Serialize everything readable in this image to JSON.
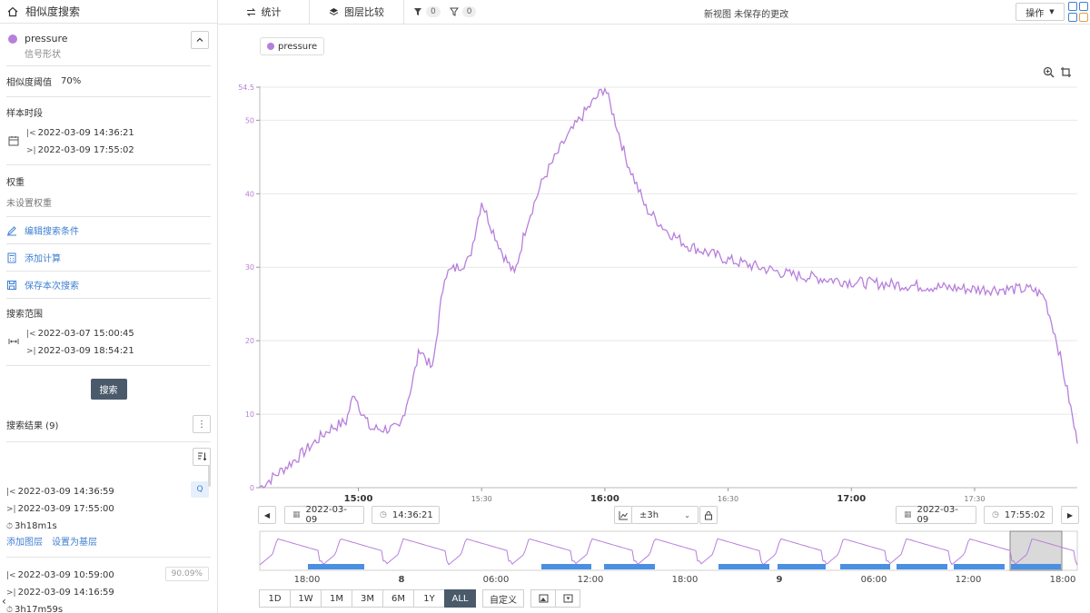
{
  "sidebar": {
    "title": "相似度搜索",
    "series_name": "pressure",
    "series_sub": "信号形状",
    "threshold_label": "相似度阈值",
    "threshold_value": "70%",
    "sample_label": "样本时段",
    "sample_start": "2022-03-09 14:36:21",
    "sample_end": "2022-03-09 17:55:02",
    "weight_label": "权重",
    "weight_value": "未设置权重",
    "actions": [
      "编辑搜索条件",
      "添加计算",
      "保存本次搜索"
    ],
    "scope_label": "搜索范围",
    "scope_start": "2022-03-07 15:00:45",
    "scope_end": "2022-03-09 18:54:21",
    "search_button": "搜索",
    "results_label": "搜索结果 (9)",
    "results": [
      {
        "start": "2022-03-09 14:36:59",
        "end": "2022-03-09 17:55:00",
        "duration": "3h18m1s",
        "badge": "Q",
        "links": [
          "添加图层",
          "设置为基层"
        ]
      },
      {
        "start": "2022-03-09 10:59:00",
        "end": "2022-03-09 14:16:59",
        "duration": "3h17m59s",
        "badge": "90.09%"
      }
    ]
  },
  "topbar": {
    "tab_stats": "统计",
    "tab_layers": "图层比较",
    "filter1_count": "0",
    "filter2_count": "0",
    "view_title": "新视图 未保存的更改",
    "ops_label": "操作"
  },
  "nav": {
    "start_date": "2022-03-09",
    "start_time": "14:36:21",
    "window": "±3h",
    "end_date": "2022-03-09",
    "end_time": "17:55:02"
  },
  "ranges": [
    "1D",
    "1W",
    "1M",
    "3M",
    "6M",
    "1Y",
    "ALL"
  ],
  "range_active": "ALL",
  "range_custom": "自定义",
  "colors": {
    "series": "#b77fdc",
    "accent": "#3f7fd0",
    "dark_button": "#4b5a6b",
    "navigator_bar": "#4a90e2"
  },
  "chart_data": {
    "type": "line",
    "series": [
      {
        "name": "pressure",
        "color": "#b77fdc"
      }
    ],
    "x": [
      "14:36",
      "14:45",
      "14:53",
      "14:57",
      "14:59",
      "15:01",
      "15:03",
      "15:07",
      "15:10",
      "15:13",
      "15:15",
      "15:18",
      "15:21",
      "15:24",
      "15:27",
      "15:30",
      "15:32",
      "15:35",
      "15:38",
      "15:41",
      "15:45",
      "15:50",
      "15:55",
      "16:00",
      "16:03",
      "16:05",
      "16:10",
      "16:15",
      "16:20",
      "16:30",
      "16:45",
      "17:00",
      "17:15",
      "17:30",
      "17:44",
      "17:47",
      "17:50",
      "17:53",
      "17:55"
    ],
    "y": [
      0,
      4,
      8,
      9,
      13,
      10,
      8,
      8,
      8,
      14,
      19,
      16,
      29,
      30,
      31,
      39,
      36,
      32,
      29,
      36,
      42,
      47,
      51,
      54.5,
      49,
      45,
      38,
      35,
      33,
      31,
      29,
      28,
      27.5,
      27,
      27,
      26,
      20,
      12,
      6
    ],
    "ylabel": "",
    "ylim": [
      0,
      54.5
    ],
    "yticks": [
      0,
      10,
      20,
      30,
      40,
      50,
      54.5
    ],
    "xticks": [
      "15:00",
      "15:30",
      "16:00",
      "16:30",
      "17:00",
      "17:30"
    ],
    "xticks_major": [
      "15:00",
      "16:00",
      "17:00"
    ],
    "grid": true,
    "legend": "top-left"
  },
  "navigator": {
    "labels": [
      "18:00",
      "8",
      "06:00",
      "12:00",
      "18:00",
      "9",
      "06:00",
      "12:00",
      "18:00"
    ]
  }
}
